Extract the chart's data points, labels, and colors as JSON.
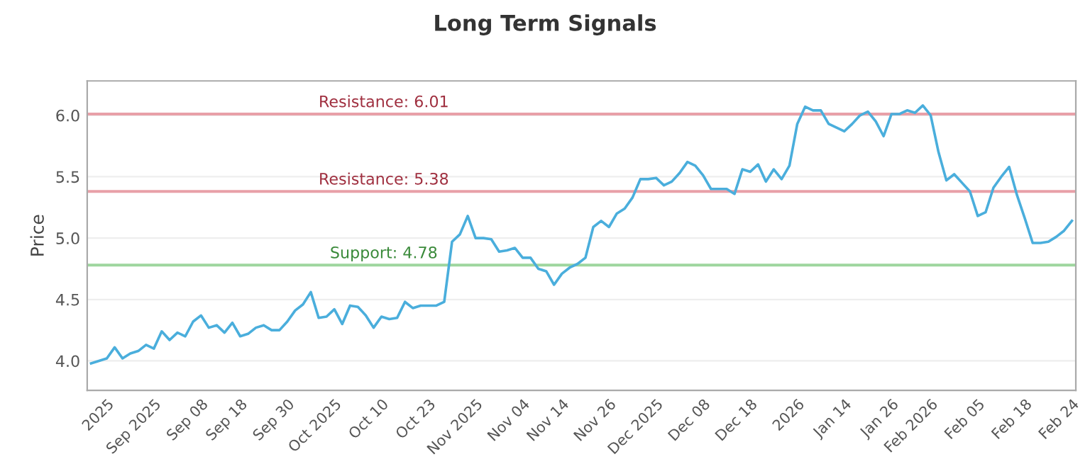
{
  "chart_data": {
    "type": "line",
    "title": "Long Term Signals",
    "ylabel": "Price",
    "categories": [
      null,
      null,
      "2025",
      null,
      null,
      null,
      null,
      null,
      "Sep 2025",
      null,
      null,
      null,
      null,
      null,
      "Sep 08",
      null,
      null,
      null,
      null,
      "Sep 18",
      null,
      null,
      null,
      null,
      null,
      "Sep 30",
      null,
      null,
      null,
      null,
      null,
      "Oct 2025",
      null,
      null,
      null,
      null,
      null,
      "Oct 10",
      null,
      null,
      null,
      null,
      null,
      "Oct 23",
      null,
      null,
      null,
      null,
      null,
      "Nov 2025",
      null,
      null,
      null,
      null,
      null,
      "Nov 04",
      null,
      null,
      null,
      null,
      "Nov 14",
      null,
      null,
      null,
      null,
      null,
      "Nov 26",
      null,
      null,
      null,
      null,
      null,
      "Dec 2025",
      null,
      null,
      null,
      null,
      null,
      "Dec 08",
      null,
      null,
      null,
      null,
      null,
      "Dec 18",
      null,
      null,
      null,
      null,
      null,
      "2026",
      null,
      null,
      null,
      null,
      null,
      "Jan 14",
      null,
      null,
      null,
      null,
      null,
      "Jan 26",
      null,
      null,
      null,
      null,
      "Feb 2026",
      null,
      null,
      null,
      null,
      null,
      "Feb 05",
      null,
      null,
      null,
      null,
      null,
      "Feb 18",
      null,
      null,
      null,
      null,
      null,
      "Feb 24"
    ],
    "series": [
      {
        "color": "#4aaedc",
        "values": [
          3.98,
          4.0,
          4.02,
          4.11,
          4.02,
          4.06,
          4.08,
          4.13,
          4.1,
          4.24,
          4.17,
          4.23,
          4.2,
          4.32,
          4.37,
          4.27,
          4.29,
          4.23,
          4.31,
          4.2,
          4.22,
          4.27,
          4.29,
          4.25,
          4.25,
          4.32,
          4.41,
          4.46,
          4.56,
          4.35,
          4.36,
          4.42,
          4.3,
          4.45,
          4.44,
          4.37,
          4.27,
          4.36,
          4.34,
          4.35,
          4.48,
          4.43,
          4.45,
          4.45,
          4.45,
          4.48,
          4.97,
          5.03,
          5.18,
          5.0,
          5.0,
          4.99,
          4.89,
          4.9,
          4.92,
          4.84,
          4.84,
          4.75,
          4.73,
          4.62,
          4.71,
          4.76,
          4.79,
          4.84,
          5.09,
          5.14,
          5.09,
          5.2,
          5.24,
          5.33,
          5.48,
          5.48,
          5.49,
          5.43,
          5.46,
          5.53,
          5.62,
          5.59,
          5.51,
          5.4,
          5.4,
          5.4,
          5.36,
          5.56,
          5.54,
          5.6,
          5.46,
          5.56,
          5.48,
          5.59,
          5.93,
          6.07,
          6.04,
          6.04,
          5.93,
          5.9,
          5.87,
          5.93,
          6.0,
          6.03,
          5.95,
          5.83,
          6.01,
          6.01,
          6.04,
          6.02,
          6.08,
          6.0,
          5.7,
          5.47,
          5.52,
          5.45,
          5.38,
          5.18,
          5.21,
          5.41,
          5.5,
          5.58,
          5.35,
          5.16,
          4.96,
          4.96,
          4.97,
          5.01,
          5.06,
          5.14
        ]
      }
    ],
    "ylim": [
      3.76,
      6.28
    ],
    "yticks": [
      {
        "value": 4,
        "label": "4.0"
      },
      4.5,
      {
        "value": 5,
        "label": "5.0"
      },
      5.5,
      {
        "value": 6,
        "label": "6.0"
      }
    ],
    "grid": "y",
    "marker": "none",
    "line_style": "solid",
    "ref_lines": [
      {
        "axis": "y",
        "value": 6.01,
        "label": "Resistance: 6.01",
        "color": "#e8a0a8"
      },
      {
        "axis": "y",
        "value": 5.38,
        "label": "Resistance: 5.38",
        "color": "#e8a0a8"
      },
      {
        "axis": "y",
        "value": 4.78,
        "label": "Support: 4.78",
        "color": "#9ed69e"
      }
    ]
  }
}
